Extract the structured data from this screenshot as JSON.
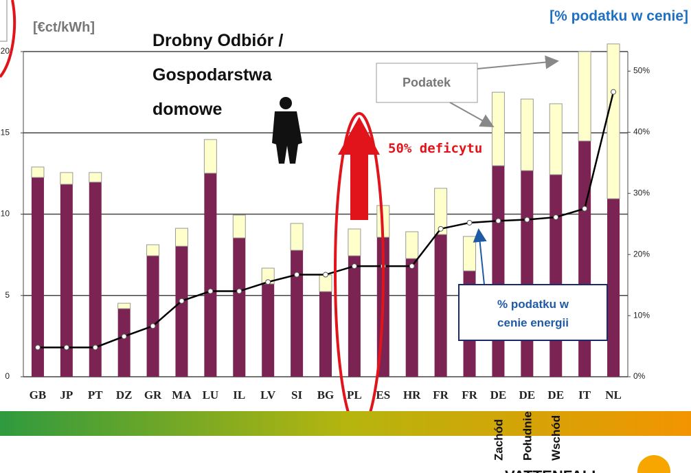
{
  "chart_data": {
    "type": "bar",
    "categories": [
      "GB",
      "JP",
      "PT",
      "DZ",
      "GR",
      "MA",
      "LU",
      "IL",
      "LV",
      "SI",
      "BG",
      "PL",
      "ES",
      "HR",
      "FR",
      "FR",
      "DE",
      "DE",
      "DE",
      "IT",
      "NL"
    ],
    "series": [
      {
        "color": "#7b2352",
        "values": [
          12.26,
          11.84,
          11.97,
          4.19,
          7.44,
          8.03,
          12.52,
          8.54,
          5.71,
          7.78,
          5.24,
          7.44,
          8.58,
          7.27,
          8.75,
          6.51,
          12.98,
          12.68,
          12.43,
          14.5,
          10.95
        ]
      },
      {
        "color": "#ffffcc",
        "values": [
          0.64,
          0.72,
          0.59,
          0.33,
          0.68,
          1.1,
          2.07,
          1.4,
          0.97,
          1.65,
          1.02,
          1.65,
          1.95,
          1.65,
          2.84,
          2.12,
          4.52,
          4.4,
          4.36,
          5.5,
          9.52
        ]
      },
      {
        "type": "line",
        "axis": "y2",
        "color": "#000000",
        "values": [
          4.8,
          4.8,
          4.8,
          6.6,
          8.3,
          12.4,
          14.0,
          14.0,
          15.5,
          16.7,
          16.7,
          18.1,
          18.1,
          18.1,
          24.2,
          25.2,
          25.5,
          25.7,
          26.1,
          27.5,
          46.6
        ]
      }
    ],
    "ylim": [
      0,
      20
    ],
    "yticks": [
      0,
      5,
      10,
      15,
      20
    ],
    "y2lim": [
      0,
      53.2
    ],
    "y2ticks": [
      {
        "value": 0,
        "label": "0%"
      },
      {
        "value": 10,
        "label": "10%"
      },
      {
        "value": 20,
        "label": "20%"
      },
      {
        "value": 30,
        "label": "30%"
      },
      {
        "value": 40,
        "label": "40%"
      },
      {
        "value": 50,
        "label": "50%"
      }
    ],
    "grid": true,
    "annotations": {
      "unit_left": "[€ct/kWh]",
      "unit_right": "[% podatku w cenie]",
      "headline": [
        "Drobny Odbiór /",
        "Gospodarstwa",
        "domowe"
      ],
      "tax_callout": "Podatek",
      "deficit": "50% deficytu",
      "share_callout": [
        "% podatku w",
        "cenie energii"
      ],
      "regions": [
        "Zachód",
        "Południe",
        "Wschód"
      ],
      "logo": "VATTENFALL"
    }
  }
}
